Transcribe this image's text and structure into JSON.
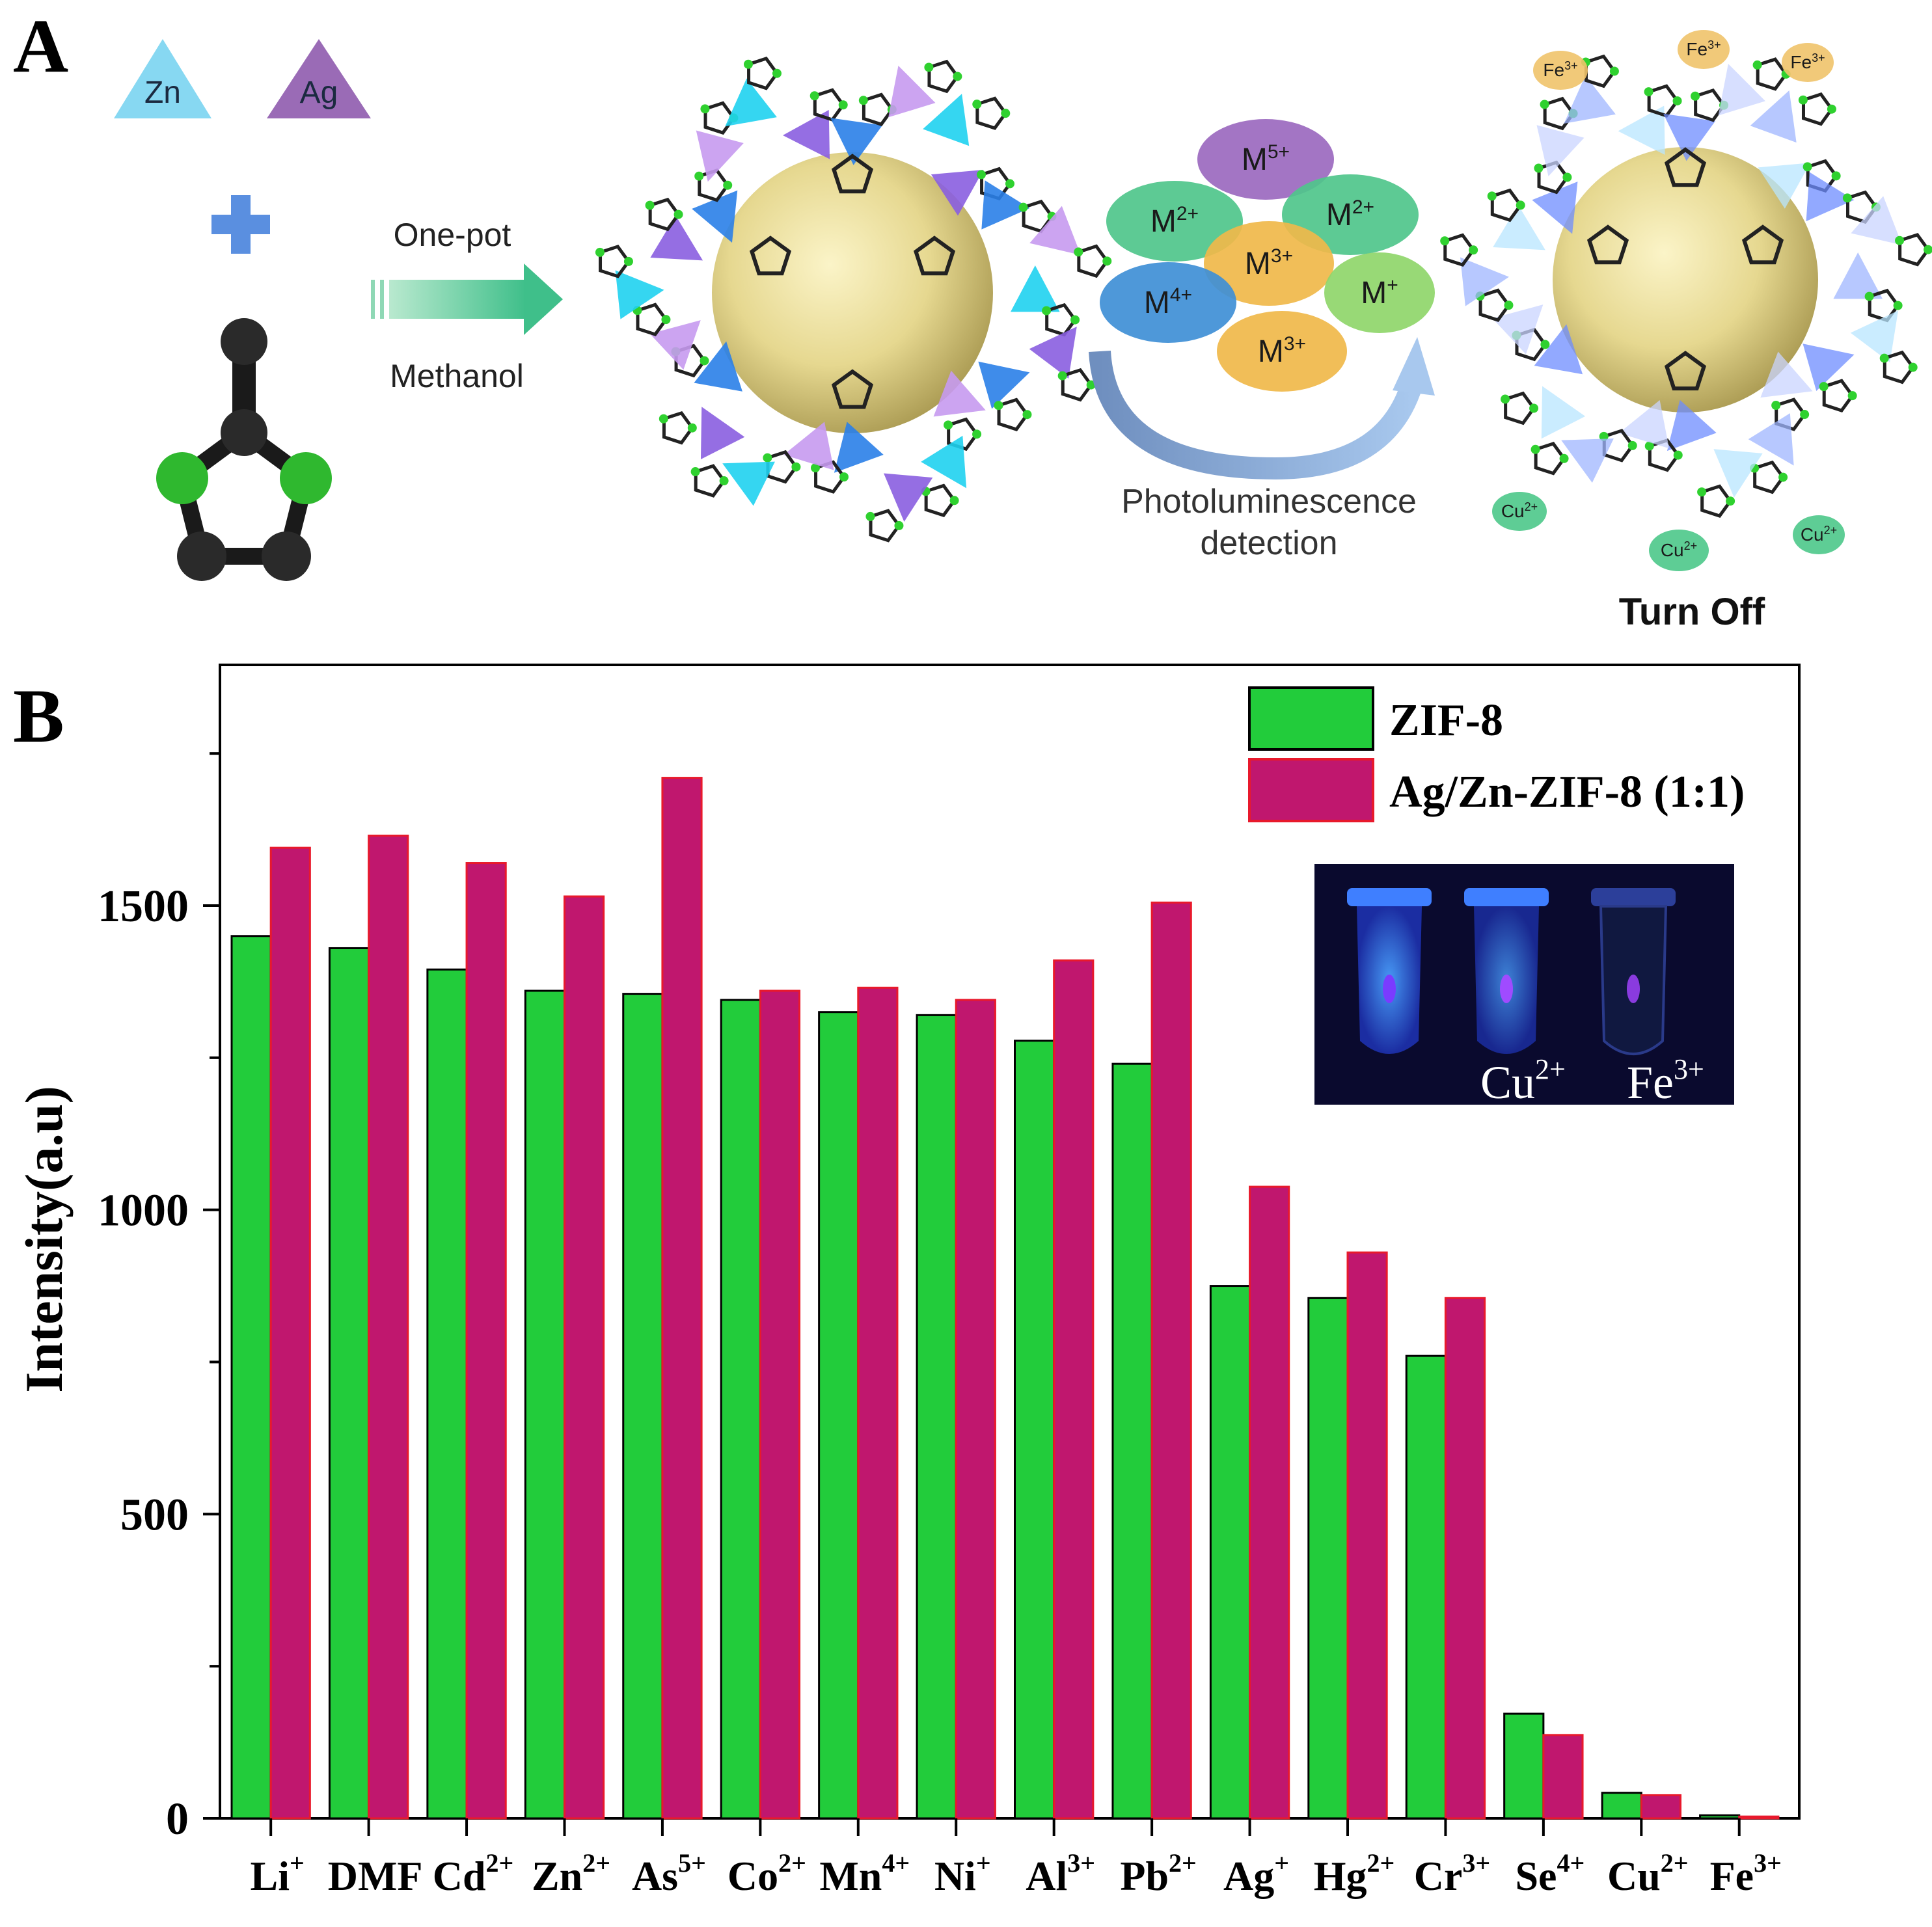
{
  "panel_a": {
    "letter": "A",
    "triangles": [
      {
        "label": "Zn",
        "color": "#87d8f2"
      },
      {
        "label": "Ag",
        "color": "#9a6bb6"
      }
    ],
    "plus": "+",
    "arrow_top": "One-pot",
    "arrow_bottom": "Methanol",
    "ion_bubbles": [
      {
        "label": "M",
        "charge": "5+",
        "color": "#9b69bf"
      },
      {
        "label": "M",
        "charge": "2+",
        "color": "#4fc68b"
      },
      {
        "label": "M",
        "charge": "2+",
        "color": "#4fc68b"
      },
      {
        "label": "M",
        "charge": "3+",
        "color": "#f0b84a"
      },
      {
        "label": "M",
        "charge": "4+",
        "color": "#3f8fd6"
      },
      {
        "label": "M",
        "charge": "+",
        "color": "#8fd66a"
      },
      {
        "label": "M",
        "charge": "3+",
        "color": "#f0b84a"
      }
    ],
    "detection_line1": "Photoluminescence",
    "detection_line2": "detection",
    "quenchers": [
      {
        "label": "Fe",
        "charge": "3+"
      },
      {
        "label": "Fe",
        "charge": "3+"
      },
      {
        "label": "Fe",
        "charge": "3+"
      },
      {
        "label": "Cu",
        "charge": "2+"
      },
      {
        "label": "Cu",
        "charge": "2+"
      },
      {
        "label": "Cu",
        "charge": "2+"
      }
    ],
    "turn_off": "Turn Off"
  },
  "panel_b": {
    "letter": "B",
    "inset": {
      "labels": [
        {
          "ion": "Cu",
          "charge": "2+"
        },
        {
          "ion": "Fe",
          "charge": "3+"
        }
      ]
    }
  },
  "colors": {
    "zif8": "#22cc3b",
    "agzn": "#c0176e",
    "edge_zif8": "#000000",
    "edge_agzn": "#e8192c"
  },
  "chart_data": {
    "type": "bar",
    "title": "",
    "xlabel": "",
    "ylabel": "Intensity(a.u)",
    "ylim": [
      0,
      1900
    ],
    "yticks": [
      0,
      500,
      1000,
      1500
    ],
    "minor_yticks": [
      250,
      750,
      1250,
      1750
    ],
    "legend_position": "top-right",
    "categories": [
      {
        "base": "Li",
        "charge": "+"
      },
      {
        "base": "DMF",
        "charge": ""
      },
      {
        "base": "Cd",
        "charge": "2+"
      },
      {
        "base": "Zn",
        "charge": "2+"
      },
      {
        "base": "As",
        "charge": "5+"
      },
      {
        "base": "Co",
        "charge": "2+"
      },
      {
        "base": "Mn",
        "charge": "4+"
      },
      {
        "base": "Ni",
        "charge": "+"
      },
      {
        "base": "Al",
        "charge": "3+"
      },
      {
        "base": "Pb",
        "charge": "2+"
      },
      {
        "base": "Ag",
        "charge": "+"
      },
      {
        "base": "Hg",
        "charge": "2+"
      },
      {
        "base": "Cr",
        "charge": "3+"
      },
      {
        "base": "Se",
        "charge": "4+"
      },
      {
        "base": "Cu",
        "charge": "2+"
      },
      {
        "base": "Fe",
        "charge": "3+"
      }
    ],
    "series": [
      {
        "name": "ZIF-8",
        "values": [
          1450,
          1430,
          1395,
          1360,
          1355,
          1345,
          1325,
          1320,
          1278,
          1240,
          875,
          855,
          760,
          172,
          42,
          5
        ]
      },
      {
        "name": "Ag/Zn-ZIF-8 (1:1)",
        "values": [
          1595,
          1615,
          1570,
          1515,
          1710,
          1360,
          1365,
          1345,
          1410,
          1505,
          1038,
          930,
          855,
          137,
          38,
          3
        ]
      }
    ]
  }
}
